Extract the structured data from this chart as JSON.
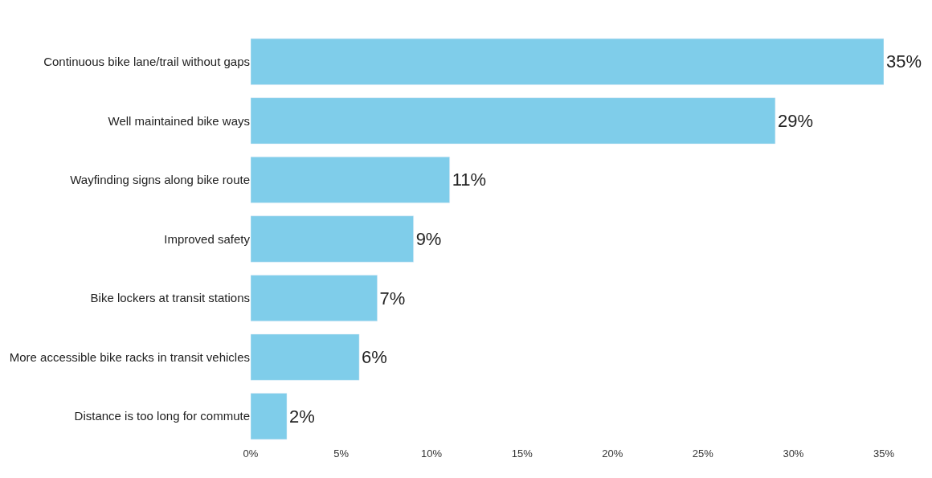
{
  "chart_data": {
    "type": "bar",
    "orientation": "horizontal",
    "categories": [
      "Continuous bike lane/trail without gaps",
      "Well maintained bike ways",
      "Wayfinding signs along bike route",
      "Improved safety",
      "Bike lockers at transit stations",
      "More accessible bike racks in transit vehicles",
      "Distance is too long for commute"
    ],
    "values": [
      35,
      29,
      11,
      9,
      7,
      6,
      2
    ],
    "value_labels": [
      "35%",
      "29%",
      "11%",
      "9%",
      "7%",
      "6%",
      "2%"
    ],
    "color": "#7fcdea",
    "xlim": [
      0,
      35
    ],
    "xticks": [
      {
        "value": 0,
        "label": "0%"
      },
      {
        "value": 5,
        "label": "5%"
      },
      {
        "value": 10,
        "label": "10%"
      },
      {
        "value": 15,
        "label": "15%"
      },
      {
        "value": 20,
        "label": "20%"
      },
      {
        "value": 25,
        "label": "25%"
      },
      {
        "value": 30,
        "label": "30%"
      },
      {
        "value": 35,
        "label": "35%"
      }
    ],
    "legend": false
  }
}
